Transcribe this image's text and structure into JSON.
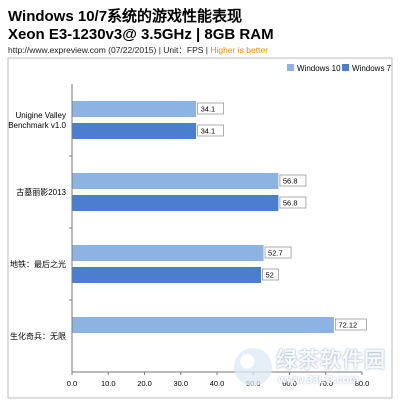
{
  "header": {
    "title": "Windows 10/7系统的游戏性能表现",
    "subtitle": "Xeon E3-1230v3@ 3.5GHz | 8GB RAM",
    "info": "http://www.expreview.com (07/22/2015) | Unit：FPS | ",
    "highlight": "Higher is better"
  },
  "chart_data": {
    "type": "bar",
    "orientation": "horizontal",
    "categories": [
      "Unigine Valley Benchmark v1.0",
      "古墓丽影2013",
      "地铁：最后之光",
      "生化奇兵：无限"
    ],
    "series": [
      {
        "name": "Windows 10",
        "values": [
          34.1,
          56.8,
          52.7,
          72.12
        ],
        "labels": [
          "34.1",
          "56.8",
          "52.7",
          "72.12"
        ],
        "color": "#8cb3e2"
      },
      {
        "name": "Windows 7",
        "values": [
          34.1,
          56.8,
          52,
          null
        ],
        "labels": [
          "34.1",
          "56.8",
          "52",
          ""
        ],
        "color": "#4a7fcf"
      }
    ],
    "xlim": [
      0,
      80
    ],
    "xticks": [
      "0.0",
      "10.0",
      "20.0",
      "30.0",
      "40.0",
      "50.0",
      "60.0",
      "70.0",
      "80.0"
    ],
    "grid": false,
    "legend": "top-right"
  },
  "watermark": {
    "text": "绿茶软件园",
    "url": "www.33LC.com"
  }
}
